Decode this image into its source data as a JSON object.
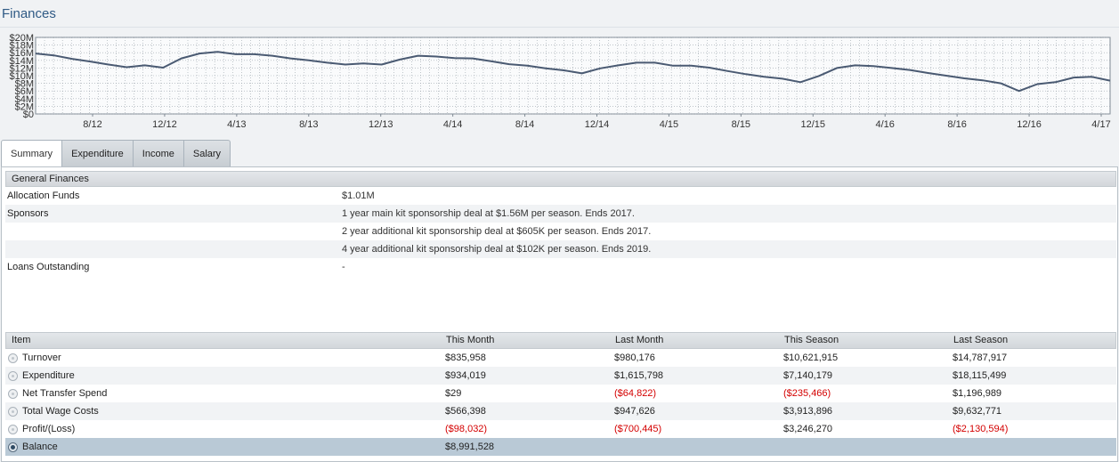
{
  "page": {
    "title": "Finances"
  },
  "chart_data": {
    "type": "line",
    "y_tick_labels": [
      "$0",
      "$2M",
      "$4M",
      "$6M",
      "$8M",
      "$10M",
      "$12M",
      "$14M",
      "$16M",
      "$18M",
      "$20M"
    ],
    "y_ticks": [
      0,
      2,
      4,
      6,
      8,
      10,
      12,
      14,
      16,
      18,
      20
    ],
    "ylim": [
      0,
      20
    ],
    "x_tick_labels": [
      "8/12",
      "12/12",
      "4/13",
      "8/13",
      "12/13",
      "4/14",
      "8/14",
      "12/14",
      "4/15",
      "8/15",
      "12/15",
      "4/16",
      "8/16",
      "12/16",
      "4/17"
    ],
    "grid": true,
    "series": [
      {
        "color": "#4a5a72",
        "values": [
          15.8,
          15.3,
          14.4,
          13.7,
          12.9,
          12.2,
          12.7,
          12.1,
          14.5,
          15.8,
          16.2,
          15.6,
          15.6,
          15.2,
          14.5,
          14.0,
          13.4,
          12.9,
          13.2,
          12.9,
          14.2,
          15.2,
          15.0,
          14.6,
          14.5,
          13.8,
          13.0,
          12.6,
          11.9,
          11.4,
          10.6,
          11.9,
          12.7,
          13.4,
          13.4,
          12.6,
          12.6,
          12.1,
          11.2,
          10.4,
          9.7,
          9.2,
          8.3,
          9.9,
          12.0,
          12.7,
          12.5,
          12.0,
          11.5,
          10.7,
          10.0,
          9.3,
          8.8,
          8.0,
          6.0,
          7.8,
          8.3,
          9.5,
          9.7,
          8.7
        ]
      }
    ]
  },
  "tabs": [
    {
      "label": "Summary",
      "active": true
    },
    {
      "label": "Expenditure",
      "active": false
    },
    {
      "label": "Income",
      "active": false
    },
    {
      "label": "Salary",
      "active": false
    }
  ],
  "general_finances": {
    "heading": "General Finances",
    "rows": [
      {
        "label": "Allocation Funds",
        "value": "$1.01M"
      },
      {
        "label": "Sponsors",
        "value": "1 year main kit sponsorship deal at $1.56M per season. Ends 2017."
      },
      {
        "label": "",
        "value": "2 year additional kit sponsorship deal at $605K per season. Ends 2017."
      },
      {
        "label": "",
        "value": "4 year additional kit sponsorship deal at $102K per season. Ends 2019."
      },
      {
        "label": "Loans Outstanding",
        "value": "-"
      }
    ]
  },
  "finance_table": {
    "columns": [
      "Item",
      "This Month",
      "Last Month",
      "This Season",
      "Last Season"
    ],
    "rows": [
      {
        "item": "Turnover",
        "this_month": "$835,958",
        "last_month": "$980,176",
        "this_season": "$10,621,915",
        "last_season": "$14,787,917"
      },
      {
        "item": "Expenditure",
        "this_month": "$934,019",
        "last_month": "$1,615,798",
        "this_season": "$7,140,179",
        "last_season": "$18,115,499"
      },
      {
        "item": "Net Transfer Spend",
        "this_month": "$29",
        "last_month": "($64,822)",
        "this_season": "($235,466)",
        "last_season": "$1,196,989"
      },
      {
        "item": "Total Wage Costs",
        "this_month": "$566,398",
        "last_month": "$947,626",
        "this_season": "$3,913,896",
        "last_season": "$9,632,771"
      },
      {
        "item": "Profit/(Loss)",
        "this_month": "($98,032)",
        "last_month": "($700,445)",
        "this_season": "$3,246,270",
        "last_season": "($2,130,594)"
      },
      {
        "item": "Balance",
        "this_month": "$8,991,528",
        "last_month": "",
        "this_season": "",
        "last_season": ""
      }
    ],
    "selected_row": "Balance"
  },
  "colors": {
    "title": "#2f5a85",
    "negative": "#d40000",
    "selected_row": "#b9c9d6",
    "line": "#4a5a72"
  }
}
